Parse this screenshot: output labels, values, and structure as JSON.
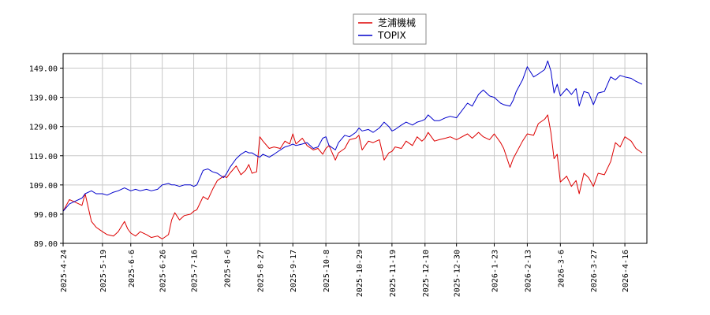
{
  "chart_data": {
    "type": "line",
    "title": "",
    "xlabel": "",
    "ylabel": "",
    "ylim": [
      89,
      154
    ],
    "yticks": [
      89.0,
      99.0,
      109.0,
      119.0,
      129.0,
      139.0,
      149.0
    ],
    "ytick_labels": [
      "89.00",
      "99.00",
      "109.00",
      "119.00",
      "129.00",
      "139.00",
      "149.00"
    ],
    "xlim": [
      "2025-04-24",
      "2026-04-30"
    ],
    "xticks": [
      "2025-4-24",
      "2025-5-19",
      "2025-6-6",
      "2025-6-26",
      "2025-7-16",
      "2025-8-6",
      "2025-8-27",
      "2025-9-17",
      "2025-10-8",
      "2025-10-29",
      "2025-11-19",
      "2025-12-10",
      "2025-12-30",
      "2026-1-23",
      "2026-2-13",
      "2026-3-6",
      "2026-3-27",
      "2026-4-16"
    ],
    "grid": true,
    "legend": "top-center",
    "series": [
      {
        "name": "芝浦機械",
        "color": "#dd0000",
        "points": [
          [
            "2025-04-24",
            100.0
          ],
          [
            "2025-04-28",
            104.0
          ],
          [
            "2025-05-02",
            103.0
          ],
          [
            "2025-05-06",
            102.0
          ],
          [
            "2025-05-08",
            106.0
          ],
          [
            "2025-05-12",
            96.5
          ],
          [
            "2025-05-15",
            94.5
          ],
          [
            "2025-05-19",
            93.0
          ],
          [
            "2025-05-22",
            92.0
          ],
          [
            "2025-05-26",
            91.5
          ],
          [
            "2025-05-29",
            93.0
          ],
          [
            "2025-06-02",
            96.5
          ],
          [
            "2025-06-04",
            94.0
          ],
          [
            "2025-06-06",
            92.5
          ],
          [
            "2025-06-09",
            91.5
          ],
          [
            "2025-06-12",
            93.0
          ],
          [
            "2025-06-16",
            92.0
          ],
          [
            "2025-06-19",
            91.0
          ],
          [
            "2025-06-23",
            91.5
          ],
          [
            "2025-06-26",
            90.5
          ],
          [
            "2025-06-30",
            92.0
          ],
          [
            "2025-07-02",
            97.0
          ],
          [
            "2025-07-04",
            99.5
          ],
          [
            "2025-07-07",
            97.0
          ],
          [
            "2025-07-10",
            98.5
          ],
          [
            "2025-07-14",
            99.0
          ],
          [
            "2025-07-16",
            100.0
          ],
          [
            "2025-07-18",
            100.5
          ],
          [
            "2025-07-22",
            105.0
          ],
          [
            "2025-07-25",
            104.0
          ],
          [
            "2025-07-28",
            107.5
          ],
          [
            "2025-07-31",
            110.5
          ],
          [
            "2025-08-04",
            112.0
          ],
          [
            "2025-08-06",
            111.5
          ],
          [
            "2025-08-08",
            113.0
          ],
          [
            "2025-08-12",
            115.5
          ],
          [
            "2025-08-15",
            112.5
          ],
          [
            "2025-08-18",
            114.0
          ],
          [
            "2025-08-20",
            116.0
          ],
          [
            "2025-08-22",
            113.0
          ],
          [
            "2025-08-25",
            113.5
          ],
          [
            "2025-08-27",
            125.5
          ],
          [
            "2025-08-29",
            124.0
          ],
          [
            "2025-09-02",
            121.5
          ],
          [
            "2025-09-05",
            122.0
          ],
          [
            "2025-09-09",
            121.5
          ],
          [
            "2025-09-12",
            124.0
          ],
          [
            "2025-09-15",
            123.0
          ],
          [
            "2025-09-17",
            126.5
          ],
          [
            "2025-09-19",
            123.0
          ],
          [
            "2025-09-23",
            125.0
          ],
          [
            "2025-09-26",
            122.5
          ],
          [
            "2025-09-30",
            121.0
          ],
          [
            "2025-10-03",
            121.5
          ],
          [
            "2025-10-06",
            119.5
          ],
          [
            "2025-10-08",
            121.5
          ],
          [
            "2025-10-10",
            122.5
          ],
          [
            "2025-10-14",
            117.5
          ],
          [
            "2025-10-16",
            120.0
          ],
          [
            "2025-10-20",
            121.5
          ],
          [
            "2025-10-23",
            124.5
          ],
          [
            "2025-10-27",
            125.0
          ],
          [
            "2025-10-29",
            126.0
          ],
          [
            "2025-10-31",
            121.0
          ],
          [
            "2025-11-04",
            124.0
          ],
          [
            "2025-11-07",
            123.5
          ],
          [
            "2025-11-11",
            124.5
          ],
          [
            "2025-11-14",
            117.5
          ],
          [
            "2025-11-17",
            120.0
          ],
          [
            "2025-11-19",
            120.5
          ],
          [
            "2025-11-21",
            122.0
          ],
          [
            "2025-11-25",
            121.5
          ],
          [
            "2025-11-28",
            124.0
          ],
          [
            "2025-12-02",
            122.5
          ],
          [
            "2025-12-05",
            125.5
          ],
          [
            "2025-12-08",
            124.0
          ],
          [
            "2025-12-10",
            125.0
          ],
          [
            "2025-12-12",
            127.0
          ],
          [
            "2025-12-16",
            124.0
          ],
          [
            "2025-12-19",
            124.5
          ],
          [
            "2025-12-23",
            125.0
          ],
          [
            "2025-12-26",
            125.5
          ],
          [
            "2025-12-30",
            124.5
          ],
          [
            "2026-01-06",
            126.5
          ],
          [
            "2026-01-09",
            125.0
          ],
          [
            "2026-01-13",
            127.0
          ],
          [
            "2026-01-16",
            125.5
          ],
          [
            "2026-01-20",
            124.5
          ],
          [
            "2026-01-23",
            126.5
          ],
          [
            "2026-01-27",
            123.5
          ],
          [
            "2026-01-29",
            121.5
          ],
          [
            "2026-02-02",
            115.0
          ],
          [
            "2026-02-04",
            118.0
          ],
          [
            "2026-02-06",
            120.0
          ],
          [
            "2026-02-10",
            124.0
          ],
          [
            "2026-02-13",
            126.5
          ],
          [
            "2026-02-17",
            126.0
          ],
          [
            "2026-02-20",
            130.0
          ],
          [
            "2026-02-24",
            131.5
          ],
          [
            "2026-02-26",
            133.0
          ],
          [
            "2026-02-28",
            127.0
          ],
          [
            "2026-03-02",
            118.0
          ],
          [
            "2026-03-04",
            119.5
          ],
          [
            "2026-03-06",
            110.0
          ],
          [
            "2026-03-10",
            112.0
          ],
          [
            "2026-03-13",
            108.5
          ],
          [
            "2026-03-16",
            110.5
          ],
          [
            "2026-03-18",
            106.0
          ],
          [
            "2026-03-21",
            113.0
          ],
          [
            "2026-03-24",
            111.5
          ],
          [
            "2026-03-27",
            108.5
          ],
          [
            "2026-03-30",
            113.0
          ],
          [
            "2026-04-03",
            112.5
          ],
          [
            "2026-04-07",
            117.0
          ],
          [
            "2026-04-10",
            123.5
          ],
          [
            "2026-04-13",
            122.0
          ],
          [
            "2026-04-16",
            125.5
          ],
          [
            "2026-04-20",
            124.0
          ],
          [
            "2026-04-23",
            121.5
          ],
          [
            "2026-04-27",
            120.0
          ]
        ]
      },
      {
        "name": "TOPIX",
        "color": "#0000cc",
        "points": [
          [
            "2025-04-24",
            100.0
          ],
          [
            "2025-04-28",
            102.5
          ],
          [
            "2025-05-02",
            103.5
          ],
          [
            "2025-05-06",
            104.5
          ],
          [
            "2025-05-08",
            106.0
          ],
          [
            "2025-05-12",
            107.0
          ],
          [
            "2025-05-15",
            106.0
          ],
          [
            "2025-05-19",
            106.0
          ],
          [
            "2025-05-22",
            105.5
          ],
          [
            "2025-05-26",
            106.5
          ],
          [
            "2025-05-29",
            107.0
          ],
          [
            "2025-06-02",
            108.0
          ],
          [
            "2025-06-04",
            107.5
          ],
          [
            "2025-06-06",
            107.0
          ],
          [
            "2025-06-09",
            107.5
          ],
          [
            "2025-06-12",
            107.0
          ],
          [
            "2025-06-16",
            107.5
          ],
          [
            "2025-06-19",
            107.0
          ],
          [
            "2025-06-23",
            107.5
          ],
          [
            "2025-06-26",
            109.0
          ],
          [
            "2025-06-30",
            109.5
          ],
          [
            "2025-07-02",
            109.0
          ],
          [
            "2025-07-04",
            109.0
          ],
          [
            "2025-07-07",
            108.5
          ],
          [
            "2025-07-10",
            109.0
          ],
          [
            "2025-07-14",
            109.0
          ],
          [
            "2025-07-16",
            108.5
          ],
          [
            "2025-07-18",
            109.0
          ],
          [
            "2025-07-22",
            114.0
          ],
          [
            "2025-07-25",
            114.5
          ],
          [
            "2025-07-28",
            113.5
          ],
          [
            "2025-07-31",
            113.0
          ],
          [
            "2025-08-04",
            111.5
          ],
          [
            "2025-08-06",
            113.0
          ],
          [
            "2025-08-08",
            115.0
          ],
          [
            "2025-08-12",
            118.0
          ],
          [
            "2025-08-15",
            119.5
          ],
          [
            "2025-08-18",
            120.5
          ],
          [
            "2025-08-20",
            120.0
          ],
          [
            "2025-08-22",
            120.0
          ],
          [
            "2025-08-25",
            119.0
          ],
          [
            "2025-08-27",
            118.5
          ],
          [
            "2025-08-29",
            119.5
          ],
          [
            "2025-09-02",
            118.5
          ],
          [
            "2025-09-05",
            119.5
          ],
          [
            "2025-09-09",
            121.0
          ],
          [
            "2025-09-12",
            122.0
          ],
          [
            "2025-09-15",
            122.5
          ],
          [
            "2025-09-17",
            123.0
          ],
          [
            "2025-09-19",
            122.5
          ],
          [
            "2025-09-23",
            123.0
          ],
          [
            "2025-09-26",
            123.5
          ],
          [
            "2025-09-30",
            121.5
          ],
          [
            "2025-10-03",
            122.0
          ],
          [
            "2025-10-06",
            125.0
          ],
          [
            "2025-10-08",
            125.5
          ],
          [
            "2025-10-10",
            122.5
          ],
          [
            "2025-10-14",
            121.0
          ],
          [
            "2025-10-16",
            123.5
          ],
          [
            "2025-10-20",
            126.0
          ],
          [
            "2025-10-23",
            125.5
          ],
          [
            "2025-10-27",
            127.0
          ],
          [
            "2025-10-29",
            128.5
          ],
          [
            "2025-10-31",
            127.5
          ],
          [
            "2025-11-04",
            128.0
          ],
          [
            "2025-11-07",
            127.0
          ],
          [
            "2025-11-11",
            128.5
          ],
          [
            "2025-11-14",
            130.5
          ],
          [
            "2025-11-17",
            129.0
          ],
          [
            "2025-11-19",
            127.5
          ],
          [
            "2025-11-21",
            128.0
          ],
          [
            "2025-11-25",
            129.5
          ],
          [
            "2025-11-28",
            130.5
          ],
          [
            "2025-12-02",
            129.5
          ],
          [
            "2025-12-05",
            130.5
          ],
          [
            "2025-12-08",
            131.0
          ],
          [
            "2025-12-10",
            131.5
          ],
          [
            "2025-12-12",
            133.0
          ],
          [
            "2025-12-16",
            131.0
          ],
          [
            "2025-12-19",
            131.0
          ],
          [
            "2025-12-23",
            132.0
          ],
          [
            "2025-12-26",
            132.5
          ],
          [
            "2025-12-30",
            132.0
          ],
          [
            "2026-01-06",
            137.0
          ],
          [
            "2026-01-09",
            136.0
          ],
          [
            "2026-01-13",
            140.0
          ],
          [
            "2026-01-16",
            141.5
          ],
          [
            "2026-01-20",
            139.5
          ],
          [
            "2026-01-23",
            139.0
          ],
          [
            "2026-01-27",
            137.0
          ],
          [
            "2026-01-29",
            136.5
          ],
          [
            "2026-02-02",
            136.0
          ],
          [
            "2026-02-04",
            138.0
          ],
          [
            "2026-02-06",
            141.0
          ],
          [
            "2026-02-10",
            145.0
          ],
          [
            "2026-02-13",
            149.5
          ],
          [
            "2026-02-17",
            146.0
          ],
          [
            "2026-02-20",
            147.0
          ],
          [
            "2026-02-24",
            148.5
          ],
          [
            "2026-02-26",
            151.5
          ],
          [
            "2026-02-28",
            148.0
          ],
          [
            "2026-03-02",
            140.5
          ],
          [
            "2026-03-04",
            143.5
          ],
          [
            "2026-03-06",
            139.5
          ],
          [
            "2026-03-10",
            142.0
          ],
          [
            "2026-03-13",
            140.0
          ],
          [
            "2026-03-16",
            142.0
          ],
          [
            "2026-03-18",
            136.0
          ],
          [
            "2026-03-21",
            141.0
          ],
          [
            "2026-03-24",
            140.5
          ],
          [
            "2026-03-27",
            136.5
          ],
          [
            "2026-03-30",
            140.5
          ],
          [
            "2026-04-03",
            141.0
          ],
          [
            "2026-04-07",
            146.0
          ],
          [
            "2026-04-10",
            145.0
          ],
          [
            "2026-04-13",
            146.5
          ],
          [
            "2026-04-16",
            146.0
          ],
          [
            "2026-04-20",
            145.5
          ],
          [
            "2026-04-23",
            144.5
          ],
          [
            "2026-04-27",
            143.5
          ]
        ]
      }
    ]
  }
}
